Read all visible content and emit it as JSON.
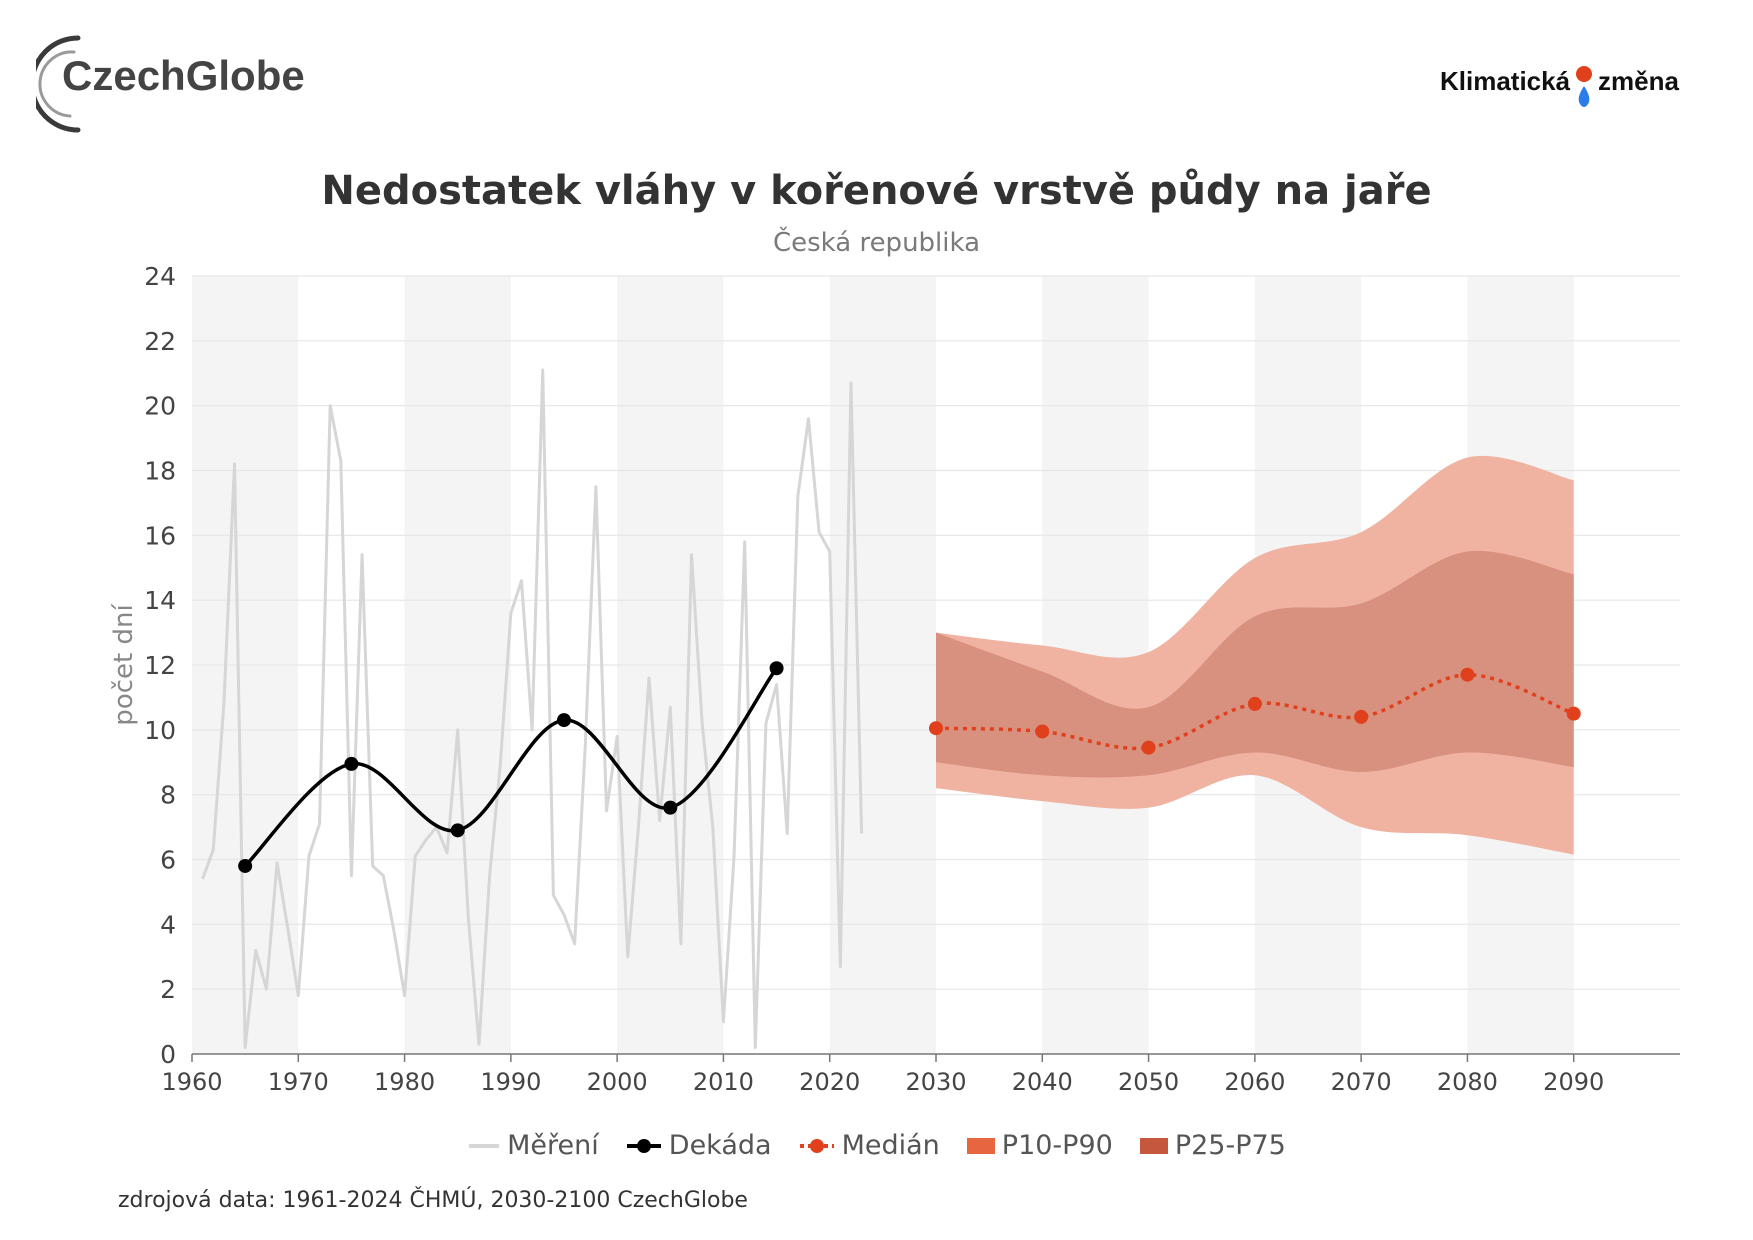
{
  "logos": {
    "left_text": "CzechGlobe",
    "right_text_1": "Klimatická",
    "right_text_2": "změna"
  },
  "colors": {
    "measured": "#d6d6d6",
    "decade": "#000000",
    "median": "#e0401c",
    "p10_p90": "#f0b3a2",
    "p25_p75": "#d9917f",
    "band_stripe": "#f4f4f4",
    "grid": "#e6e6e6"
  },
  "source": "zdrojová data: 1961-2024 ČHMÚ, 2030-2100 CzechGlobe",
  "chart_data": {
    "type": "line",
    "title": "Nedostatek vláhy v kořenové vrstvě půdy na jaře",
    "subtitle": "Česká republika",
    "ylabel": "počet dní",
    "xlabel": "",
    "xlim": [
      1960,
      2100
    ],
    "ylim": [
      0,
      24
    ],
    "x_ticks": [
      1960,
      1970,
      1980,
      1990,
      2000,
      2010,
      2020,
      2030,
      2040,
      2050,
      2060,
      2070,
      2080,
      2090
    ],
    "y_ticks": [
      0,
      2,
      4,
      6,
      8,
      10,
      12,
      14,
      16,
      18,
      20,
      22,
      24
    ],
    "grid": true,
    "legend_position": "bottom",
    "legend": [
      "Měření",
      "Dekáda",
      "Medián",
      "P10-P90",
      "P25-P75"
    ],
    "series": [
      {
        "name": "Měření",
        "type": "line",
        "x": [
          1961,
          1962,
          1963,
          1964,
          1965,
          1966,
          1967,
          1968,
          1969,
          1970,
          1971,
          1972,
          1973,
          1974,
          1975,
          1976,
          1977,
          1978,
          1979,
          1980,
          1981,
          1982,
          1983,
          1984,
          1985,
          1986,
          1987,
          1988,
          1989,
          1990,
          1991,
          1992,
          1993,
          1994,
          1995,
          1996,
          1997,
          1998,
          1999,
          2000,
          2001,
          2002,
          2003,
          2004,
          2005,
          2006,
          2007,
          2008,
          2009,
          2010,
          2011,
          2012,
          2013,
          2014,
          2015,
          2016,
          2017,
          2018,
          2019,
          2020,
          2021,
          2022,
          2023
        ],
        "y": [
          5.4,
          6.3,
          10.8,
          18.2,
          0.2,
          3.2,
          2.0,
          5.9,
          3.9,
          1.8,
          6.1,
          7.1,
          20.0,
          18.3,
          5.5,
          15.4,
          5.8,
          5.5,
          3.8,
          1.8,
          6.1,
          6.6,
          7.0,
          6.2,
          10.0,
          4.2,
          0.3,
          5.5,
          8.9,
          13.6,
          14.6,
          10.0,
          21.1,
          4.9,
          4.3,
          3.4,
          9.5,
          17.5,
          7.5,
          9.8,
          3.0,
          7.0,
          11.6,
          7.2,
          10.7,
          3.4,
          15.4,
          10.2,
          7.0,
          1.0,
          6.1,
          15.8,
          0.2,
          10.2,
          11.4,
          6.8,
          17.2,
          19.6,
          16.1,
          15.5,
          2.7,
          20.7,
          6.8
        ]
      },
      {
        "name": "Dekáda",
        "type": "line",
        "x": [
          1965,
          1975,
          1985,
          1995,
          2005,
          2015
        ],
        "y": [
          5.8,
          8.95,
          6.9,
          10.3,
          7.6,
          11.9
        ]
      },
      {
        "name": "Medián",
        "type": "line",
        "x": [
          2030,
          2040,
          2050,
          2060,
          2070,
          2080,
          2090
        ],
        "y": [
          10.05,
          9.95,
          9.45,
          10.8,
          10.4,
          11.7,
          10.5
        ]
      },
      {
        "name": "P10-P90",
        "type": "area",
        "x": [
          2030,
          2040,
          2050,
          2060,
          2070,
          2080,
          2090
        ],
        "low": [
          8.2,
          7.8,
          7.6,
          8.6,
          7.0,
          6.75,
          6.15
        ],
        "high": [
          13.0,
          12.6,
          12.4,
          15.3,
          16.1,
          18.4,
          17.7
        ]
      },
      {
        "name": "P25-P75",
        "type": "area",
        "x": [
          2030,
          2040,
          2050,
          2060,
          2070,
          2080,
          2090
        ],
        "low": [
          9.0,
          8.6,
          8.6,
          9.3,
          8.7,
          9.3,
          8.85
        ],
        "high": [
          13.0,
          11.8,
          10.7,
          13.5,
          13.9,
          15.5,
          14.8
        ]
      }
    ]
  }
}
